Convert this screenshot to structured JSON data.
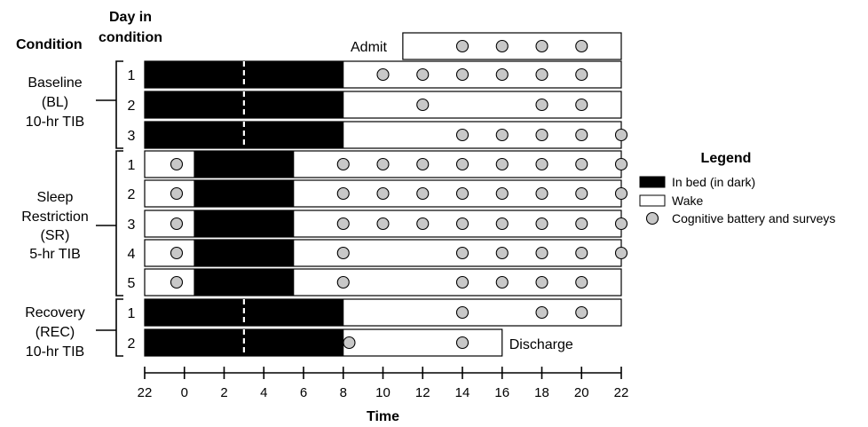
{
  "headers": {
    "condition": "Condition",
    "day_line1": "Day in",
    "day_line2": "condition"
  },
  "chart_data": {
    "type": "timeline",
    "x_axis": {
      "label": "Time",
      "ticks": [
        "22",
        "0",
        "2",
        "4",
        "6",
        "8",
        "10",
        "12",
        "14",
        "16",
        "18",
        "20",
        "22"
      ],
      "range_hours": [
        22,
        46
      ]
    },
    "night_marker_hour": "3",
    "conditions": [
      {
        "lines": [
          "Baseline",
          "(BL)",
          "10-hr TIB"
        ]
      },
      {
        "lines": [
          "Sleep",
          "Restriction",
          "(SR)",
          "5-hr TIB"
        ]
      },
      {
        "lines": [
          "Recovery",
          "(REC)",
          "10-hr TIB"
        ]
      }
    ],
    "rows": [
      {
        "condition": 0,
        "day": "Admit",
        "wake": [
          11,
          22
        ],
        "bed": [],
        "tests": [
          14,
          16,
          18,
          20
        ],
        "label": "Admit"
      },
      {
        "condition": 0,
        "day": "1",
        "wake": [
          8,
          22
        ],
        "bed": [
          22,
          8
        ],
        "tests": [
          10,
          12,
          14,
          16,
          18,
          20
        ]
      },
      {
        "condition": 0,
        "day": "2",
        "wake": [
          8,
          22
        ],
        "bed": [
          22,
          8
        ],
        "tests": [
          12,
          18,
          20
        ]
      },
      {
        "condition": 0,
        "day": "3",
        "wake": [
          8,
          22
        ],
        "bed": [
          22,
          8
        ],
        "tests": [
          14,
          16,
          18,
          20,
          22
        ]
      },
      {
        "condition": 1,
        "day": "1",
        "wake": [
          22,
          22
        ],
        "bed": [
          0.5,
          5.5
        ],
        "tests": [
          23.8,
          8,
          10,
          12,
          14,
          16,
          18,
          20,
          22
        ]
      },
      {
        "condition": 1,
        "day": "2",
        "wake": [
          22,
          22
        ],
        "bed": [
          0.5,
          5.5
        ],
        "tests": [
          23.8,
          8,
          10,
          12,
          14,
          16,
          18,
          20,
          22
        ]
      },
      {
        "condition": 1,
        "day": "3",
        "wake": [
          22,
          22
        ],
        "bed": [
          0.5,
          5.5
        ],
        "tests": [
          23.8,
          8,
          10,
          12,
          14,
          16,
          18,
          20,
          22
        ]
      },
      {
        "condition": 1,
        "day": "4",
        "wake": [
          22,
          22
        ],
        "bed": [
          0.5,
          5.5
        ],
        "tests": [
          23.8,
          8,
          14,
          16,
          18,
          20,
          22
        ]
      },
      {
        "condition": 1,
        "day": "5",
        "wake": [
          22,
          22
        ],
        "bed": [
          0.5,
          5.5
        ],
        "tests": [
          23.8,
          8,
          14,
          16,
          18,
          20
        ]
      },
      {
        "condition": 2,
        "day": "1",
        "wake": [
          8,
          22
        ],
        "bed": [
          22,
          8
        ],
        "tests": [
          14,
          18,
          20
        ]
      },
      {
        "condition": 2,
        "day": "2",
        "wake": [
          8,
          16
        ],
        "bed": [
          22,
          8
        ],
        "tests": [
          8.3,
          14
        ],
        "label": "Discharge"
      }
    ],
    "legend": {
      "title": "Legend",
      "items": [
        {
          "kind": "bed",
          "label": "In bed (in dark)"
        },
        {
          "kind": "wake",
          "label": "Wake"
        },
        {
          "kind": "test",
          "label": "Cognitive battery and surveys"
        }
      ]
    },
    "colors": {
      "bed": "#000000",
      "wake": "#ffffff",
      "test_fill": "#c8c8c8",
      "stroke": "#000000"
    }
  }
}
